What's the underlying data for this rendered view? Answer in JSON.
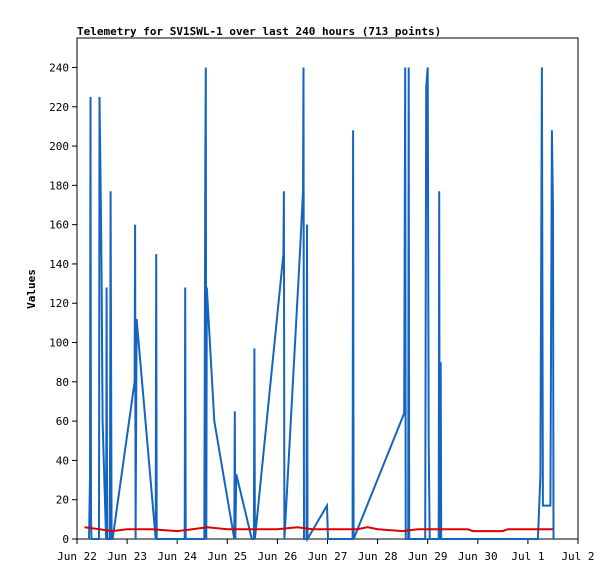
{
  "chart_data": {
    "type": "line",
    "title": "Telemetry for SV1SWL-1 over last 240 hours (713 points)",
    "xlabel": "",
    "ylabel": "Values",
    "ylim": [
      0,
      255
    ],
    "xlim": [
      0,
      10
    ],
    "x_tick_labels": [
      {
        "pos": 0,
        "label": "Jun 22"
      },
      {
        "pos": 1,
        "label": "Jun 23"
      },
      {
        "pos": 2,
        "label": "Jun 24"
      },
      {
        "pos": 3,
        "label": "Jun 25"
      },
      {
        "pos": 4,
        "label": "Jun 26"
      },
      {
        "pos": 5,
        "label": "Jun 27"
      },
      {
        "pos": 6,
        "label": "Jun 28"
      },
      {
        "pos": 7,
        "label": "Jun 29"
      },
      {
        "pos": 8,
        "label": "Jun 30"
      },
      {
        "pos": 9,
        "label": "Jul 1"
      },
      {
        "pos": 10,
        "label": "Jul 2"
      }
    ],
    "y_ticks": [
      0,
      20,
      40,
      60,
      80,
      100,
      120,
      140,
      160,
      180,
      200,
      220,
      240
    ],
    "grid": false,
    "colors": {
      "blue": "#1565c0",
      "red": "#dd0000",
      "axis": "#000000"
    },
    "series": [
      {
        "color": "#1565c0",
        "points": [
          [
            0.24,
            0
          ],
          [
            0.26,
            32
          ],
          [
            0.27,
            225
          ],
          [
            0.28,
            12
          ],
          [
            0.29,
            0
          ],
          [
            0.3,
            0
          ],
          [
            0.44,
            0
          ],
          [
            0.45,
            225
          ],
          [
            0.47,
            185
          ],
          [
            0.49,
            140
          ],
          [
            0.51,
            60
          ],
          [
            0.58,
            0
          ],
          [
            0.59,
            128
          ],
          [
            0.6,
            0
          ],
          [
            0.65,
            0
          ],
          [
            0.66,
            50
          ],
          [
            0.67,
            177
          ],
          [
            0.69,
            0
          ],
          [
            0.71,
            0
          ],
          [
            1.15,
            80
          ],
          [
            1.16,
            160
          ],
          [
            1.17,
            0
          ],
          [
            1.19,
            112
          ],
          [
            1.57,
            0
          ],
          [
            1.58,
            145
          ],
          [
            1.59,
            0
          ],
          [
            2.15,
            0
          ],
          [
            2.16,
            128
          ],
          [
            2.17,
            0
          ],
          [
            2.54,
            0
          ],
          [
            2.56,
            192
          ],
          [
            2.57,
            240
          ],
          [
            2.58,
            0
          ],
          [
            2.59,
            128
          ],
          [
            2.74,
            60
          ],
          [
            3.14,
            0
          ],
          [
            3.15,
            65
          ],
          [
            3.16,
            0
          ],
          [
            3.18,
            33
          ],
          [
            3.49,
            0
          ],
          [
            3.53,
            0
          ],
          [
            3.54,
            97
          ],
          [
            3.55,
            0
          ],
          [
            4.12,
            145
          ],
          [
            4.13,
            177
          ],
          [
            4.14,
            0
          ],
          [
            4.46,
            150
          ],
          [
            4.51,
            177
          ],
          [
            4.52,
            240
          ],
          [
            4.53,
            0
          ],
          [
            4.58,
            0
          ],
          [
            4.59,
            160
          ],
          [
            4.6,
            0
          ],
          [
            4.99,
            17
          ],
          [
            5.01,
            0
          ],
          [
            5.5,
            0
          ],
          [
            5.51,
            208
          ],
          [
            5.52,
            0
          ],
          [
            5.52,
            0
          ],
          [
            6.53,
            64
          ],
          [
            6.55,
            240
          ],
          [
            6.56,
            0
          ],
          [
            6.61,
            0
          ],
          [
            6.62,
            240
          ],
          [
            6.63,
            0
          ],
          [
            6.95,
            0
          ],
          [
            6.97,
            230
          ],
          [
            7.0,
            240
          ],
          [
            7.02,
            48
          ],
          [
            7.04,
            0
          ],
          [
            7.22,
            0
          ],
          [
            7.23,
            177
          ],
          [
            7.24,
            0
          ],
          [
            7.26,
            90
          ],
          [
            7.27,
            0
          ],
          [
            9.2,
            0
          ],
          [
            9.25,
            32
          ],
          [
            9.28,
            240
          ],
          [
            9.3,
            17
          ],
          [
            9.45,
            17
          ],
          [
            9.47,
            145
          ],
          [
            9.48,
            208
          ],
          [
            9.5,
            168
          ],
          [
            9.51,
            0
          ]
        ]
      },
      {
        "color": "#dd0000",
        "points": [
          [
            0.15,
            6
          ],
          [
            0.45,
            5
          ],
          [
            0.7,
            4
          ],
          [
            1.0,
            5
          ],
          [
            1.5,
            5
          ],
          [
            2.0,
            4
          ],
          [
            2.3,
            5
          ],
          [
            2.6,
            6
          ],
          [
            3.0,
            5
          ],
          [
            3.5,
            5
          ],
          [
            4.0,
            5
          ],
          [
            4.4,
            6
          ],
          [
            4.7,
            5
          ],
          [
            5.2,
            5
          ],
          [
            5.6,
            5
          ],
          [
            5.8,
            6
          ],
          [
            6.0,
            5
          ],
          [
            6.5,
            4
          ],
          [
            6.8,
            5
          ],
          [
            7.4,
            5
          ],
          [
            7.8,
            5
          ],
          [
            7.9,
            4
          ],
          [
            8.5,
            4
          ],
          [
            8.6,
            5
          ],
          [
            9.2,
            5
          ],
          [
            9.5,
            5
          ]
        ]
      }
    ]
  }
}
